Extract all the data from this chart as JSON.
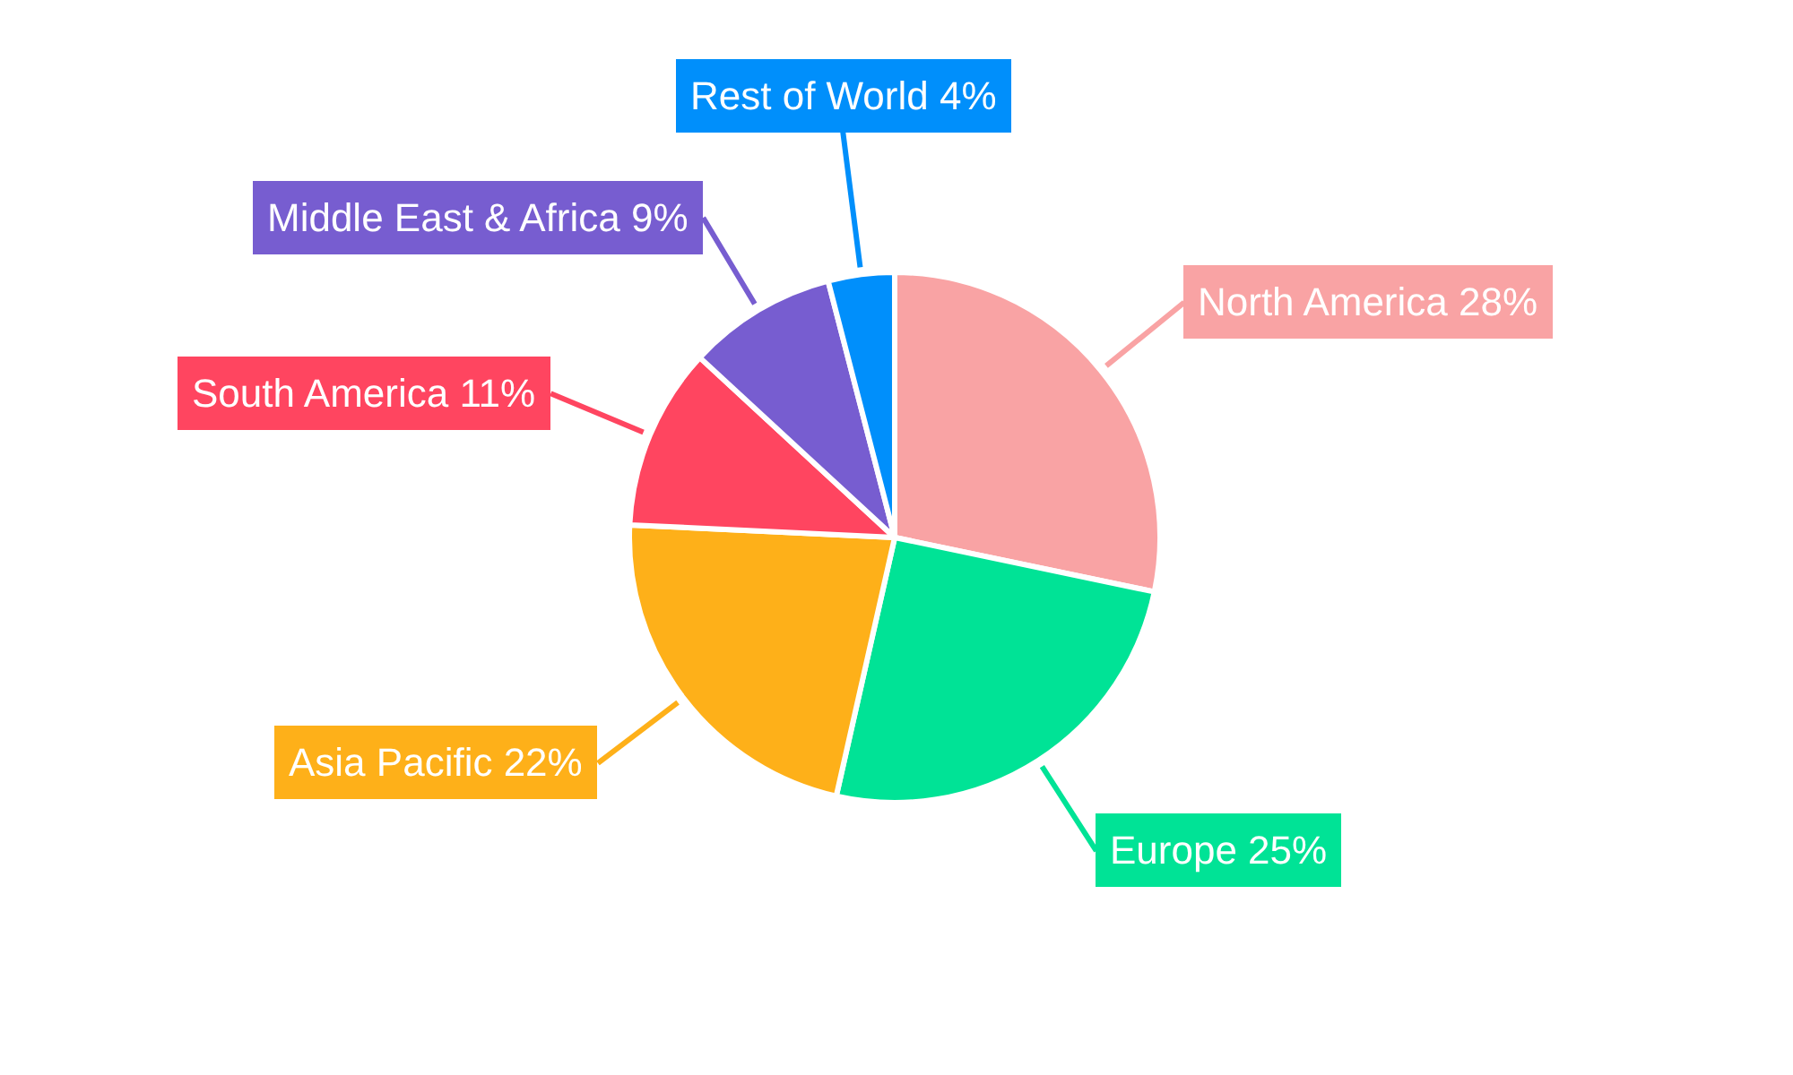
{
  "chart_data": {
    "type": "pie",
    "categories": [
      "North America",
      "Europe",
      "Asia Pacific",
      "South America",
      "Middle East & Africa",
      "Rest of World"
    ],
    "values": [
      28,
      25,
      22,
      11,
      9,
      4
    ],
    "colors": [
      "#f9a3a4",
      "#00e396",
      "#feb019",
      "#ff4560",
      "#775dd0",
      "#008ffb"
    ],
    "value_labels": [
      "28%",
      "25%",
      "22%",
      "11%",
      "9%",
      "4%"
    ],
    "legend": false
  }
}
